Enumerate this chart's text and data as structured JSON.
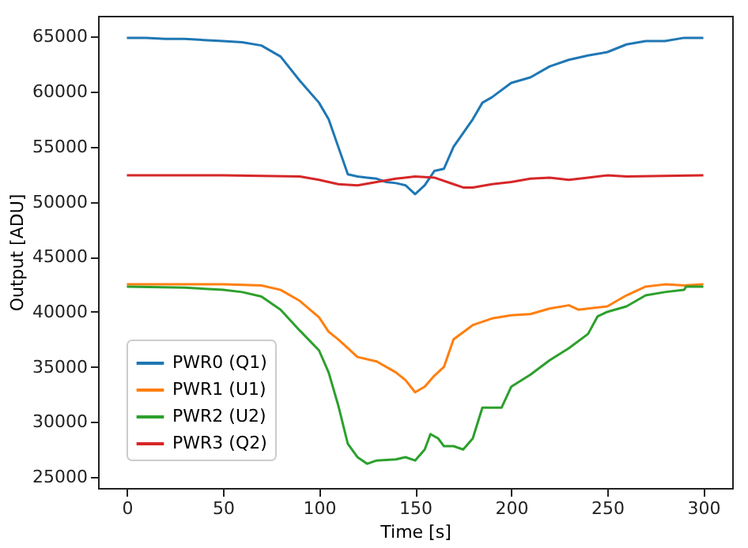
{
  "chart_data": {
    "type": "line",
    "xlabel": "Time [s]",
    "ylabel": "Output [ADU]",
    "xlim": [
      -15,
      315
    ],
    "ylim": [
      24000,
      66900
    ],
    "xticks": [
      0,
      50,
      100,
      150,
      200,
      250,
      300
    ],
    "yticks": [
      25000,
      30000,
      35000,
      40000,
      45000,
      50000,
      55000,
      60000,
      65000
    ],
    "grid": false,
    "legend": "bottom left",
    "marker": "none",
    "line_style": "solid",
    "series": [
      {
        "name": "PWR0 (Q1)",
        "color": "#1f77b4",
        "x": [
          0,
          10,
          20,
          30,
          40,
          50,
          60,
          70,
          80,
          90,
          100,
          105,
          110,
          115,
          120,
          125,
          130,
          135,
          140,
          145,
          150,
          155,
          160,
          165,
          170,
          180,
          185,
          190,
          200,
          210,
          220,
          230,
          240,
          250,
          260,
          270,
          280,
          290,
          300
        ],
        "values": [
          64900,
          64900,
          64800,
          64800,
          64700,
          64600,
          64500,
          64200,
          63200,
          61000,
          59000,
          57500,
          55000,
          52500,
          52300,
          52200,
          52100,
          51800,
          51700,
          51500,
          50700,
          51500,
          52800,
          53000,
          55000,
          57500,
          59000,
          59500,
          60800,
          61300,
          62300,
          62900,
          63300,
          63600,
          64300,
          64600,
          64600,
          64900,
          64900
        ]
      },
      {
        "name": "PWR1 (U1)",
        "color": "#ff7f0e",
        "x": [
          0,
          50,
          70,
          80,
          90,
          100,
          105,
          110,
          115,
          120,
          130,
          140,
          145,
          150,
          155,
          160,
          165,
          170,
          180,
          190,
          200,
          210,
          220,
          230,
          235,
          240,
          250,
          260,
          270,
          280,
          290,
          300
        ],
        "values": [
          42500,
          42500,
          42400,
          42000,
          41000,
          39500,
          38200,
          37500,
          36700,
          35900,
          35500,
          34500,
          33800,
          32700,
          33200,
          34200,
          35000,
          37500,
          38800,
          39400,
          39700,
          39800,
          40300,
          40600,
          40200,
          40300,
          40500,
          41500,
          42300,
          42500,
          42400,
          42500
        ]
      },
      {
        "name": "PWR2 (U2)",
        "color": "#2ca02c",
        "x": [
          0,
          30,
          50,
          60,
          70,
          80,
          90,
          100,
          105,
          110,
          115,
          120,
          125,
          130,
          140,
          145,
          150,
          155,
          158,
          162,
          165,
          170,
          175,
          180,
          185,
          195,
          200,
          210,
          220,
          230,
          240,
          245,
          250,
          260,
          270,
          280,
          290,
          291,
          300
        ],
        "values": [
          42300,
          42200,
          42000,
          41800,
          41400,
          40200,
          38300,
          36500,
          34500,
          31500,
          28000,
          26800,
          26200,
          26500,
          26600,
          26800,
          26500,
          27500,
          28900,
          28500,
          27800,
          27800,
          27500,
          28500,
          31300,
          31300,
          33200,
          34300,
          35600,
          36700,
          38000,
          39600,
          40000,
          40500,
          41500,
          41800,
          42000,
          42300,
          42300
        ]
      },
      {
        "name": "PWR3 (Q2)",
        "color": "#d62728",
        "x": [
          0,
          50,
          90,
          100,
          110,
          120,
          130,
          140,
          150,
          160,
          170,
          175,
          180,
          190,
          200,
          210,
          220,
          230,
          240,
          250,
          260,
          300
        ],
        "values": [
          52400,
          52400,
          52300,
          52000,
          51600,
          51500,
          51800,
          52100,
          52300,
          52200,
          51600,
          51300,
          51300,
          51600,
          51800,
          52100,
          52200,
          52000,
          52200,
          52400,
          52300,
          52400
        ]
      }
    ]
  }
}
